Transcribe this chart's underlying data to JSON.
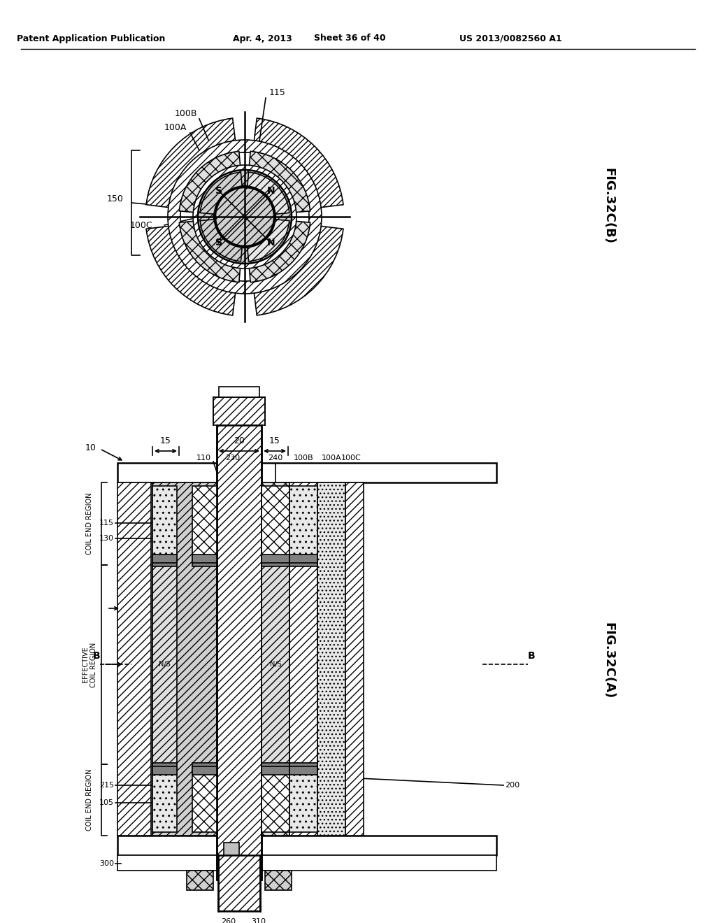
{
  "fig_title_top": "Patent Application Publication",
  "fig_date": "Apr. 4, 2013",
  "fig_sheet": "Sheet 36 of 40",
  "fig_number": "US 2013/0082560 A1",
  "fig_label_B": "FIG.32C(B)",
  "fig_label_A": "FIG.32C(A)",
  "bg_color": "#ffffff",
  "line_color": "#000000"
}
